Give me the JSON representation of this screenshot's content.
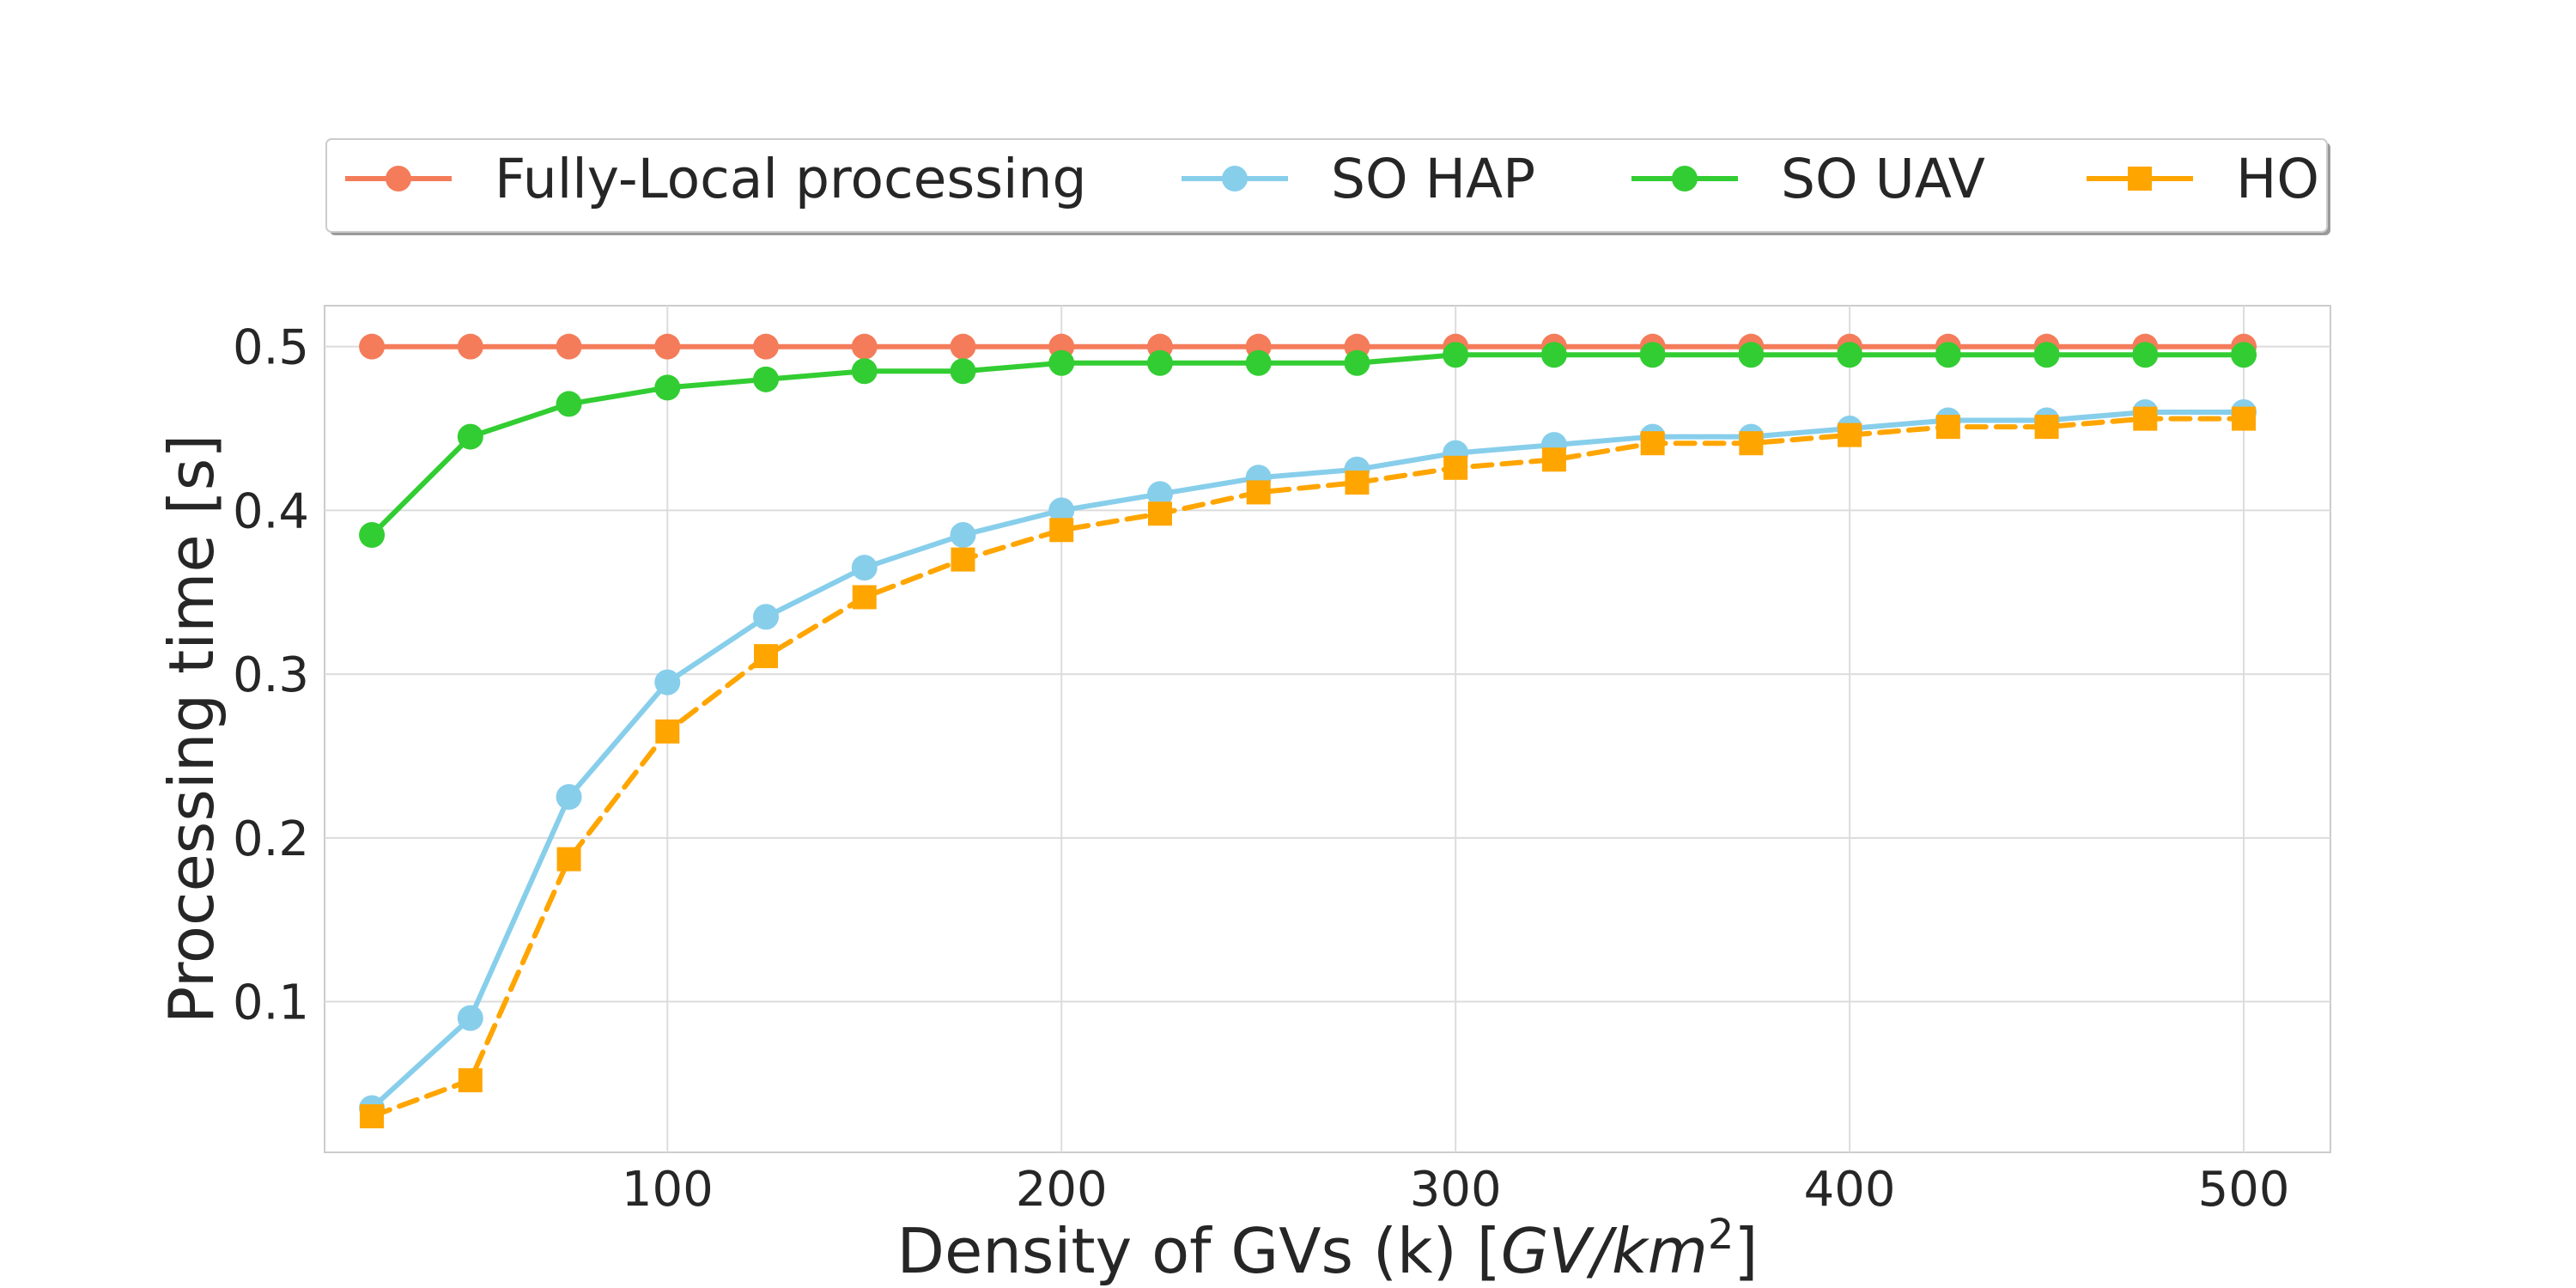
{
  "chart_data": {
    "type": "line",
    "title": "",
    "xlabel_prefix": "Density of GVs (k) [",
    "xlabel_italic": "GV/km",
    "xlabel_superscript": "2",
    "xlabel_suffix": "]",
    "ylabel": "Processing time [s]",
    "xlim": [
      13,
      522
    ],
    "ylim": [
      0.008,
      0.525
    ],
    "x_ticks": [
      100,
      200,
      300,
      400,
      500
    ],
    "x_tick_labels": [
      "100",
      "200",
      "300",
      "400",
      "500"
    ],
    "y_ticks": [
      0.1,
      0.2,
      0.3,
      0.4,
      0.5
    ],
    "y_tick_labels": [
      "0.1",
      "0.2",
      "0.3",
      "0.4",
      "0.5"
    ],
    "grid": true,
    "legend_position": "top-center",
    "x": [
      25,
      50,
      75,
      100,
      125,
      150,
      175,
      200,
      225,
      250,
      275,
      300,
      325,
      350,
      375,
      400,
      425,
      450,
      475,
      500
    ],
    "series": [
      {
        "name": "Fully-Local processing",
        "color": "#f47c5a",
        "marker": "circle",
        "dash": "solid",
        "values": [
          0.5,
          0.5,
          0.5,
          0.5,
          0.5,
          0.5,
          0.5,
          0.5,
          0.5,
          0.5,
          0.5,
          0.5,
          0.5,
          0.5,
          0.5,
          0.5,
          0.5,
          0.5,
          0.5,
          0.5
        ]
      },
      {
        "name": "SO HAP",
        "color": "#87ceeb",
        "marker": "circle",
        "dash": "solid",
        "values": [
          0.035,
          0.09,
          0.225,
          0.295,
          0.335,
          0.365,
          0.385,
          0.4,
          0.41,
          0.42,
          0.425,
          0.435,
          0.44,
          0.445,
          0.445,
          0.45,
          0.455,
          0.455,
          0.46,
          0.46
        ]
      },
      {
        "name": "SO UAV",
        "color": "#32cd32",
        "marker": "circle",
        "dash": "solid",
        "values": [
          0.385,
          0.445,
          0.465,
          0.475,
          0.48,
          0.485,
          0.485,
          0.49,
          0.49,
          0.49,
          0.49,
          0.495,
          0.495,
          0.495,
          0.495,
          0.495,
          0.495,
          0.495,
          0.495,
          0.495
        ]
      },
      {
        "name": "HO",
        "color": "#ffa500",
        "marker": "square",
        "dash": "dashed",
        "values": [
          0.03,
          0.052,
          0.187,
          0.265,
          0.311,
          0.347,
          0.37,
          0.388,
          0.398,
          0.411,
          0.417,
          0.426,
          0.431,
          0.441,
          0.441,
          0.446,
          0.451,
          0.451,
          0.456,
          0.456
        ]
      }
    ]
  }
}
